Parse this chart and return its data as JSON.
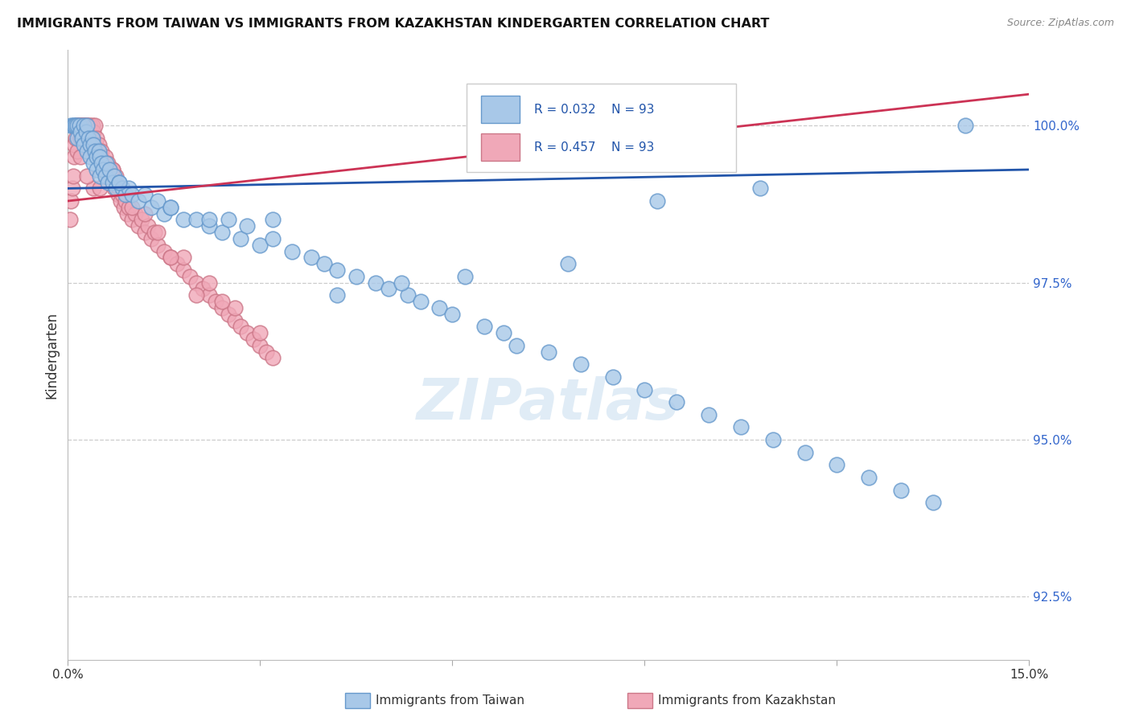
{
  "title": "IMMIGRANTS FROM TAIWAN VS IMMIGRANTS FROM KAZAKHSTAN KINDERGARTEN CORRELATION CHART",
  "source": "Source: ZipAtlas.com",
  "ylabel_left": "Kindergarten",
  "legend1_label": "Immigrants from Taiwan",
  "legend2_label": "Immigrants from Kazakhstan",
  "R_taiwan": 0.032,
  "N_taiwan": 93,
  "R_kazakhstan": 0.457,
  "N_kazakhstan": 93,
  "color_taiwan": "#A8C8E8",
  "color_taiwan_edge": "#6699CC",
  "color_kazakhstan": "#F0A8B8",
  "color_kazakhstan_edge": "#CC7788",
  "color_taiwan_line": "#2255AA",
  "color_kazakhstan_line": "#CC3355",
  "x_min": 0.0,
  "x_max": 15.0,
  "y_min": 91.5,
  "y_max": 101.2,
  "y_ticks": [
    92.5,
    95.0,
    97.5,
    100.0
  ],
  "watermark": "ZIPatlas",
  "taiwan_x": [
    0.05,
    0.08,
    0.1,
    0.12,
    0.15,
    0.15,
    0.18,
    0.2,
    0.22,
    0.25,
    0.25,
    0.28,
    0.3,
    0.3,
    0.32,
    0.35,
    0.35,
    0.38,
    0.4,
    0.4,
    0.42,
    0.45,
    0.45,
    0.48,
    0.5,
    0.5,
    0.52,
    0.55,
    0.58,
    0.6,
    0.62,
    0.65,
    0.7,
    0.72,
    0.75,
    0.8,
    0.85,
    0.9,
    0.95,
    1.0,
    1.1,
    1.2,
    1.3,
    1.4,
    1.5,
    1.6,
    1.8,
    2.0,
    2.2,
    2.4,
    2.5,
    2.7,
    2.8,
    3.0,
    3.2,
    3.5,
    3.8,
    4.0,
    4.2,
    4.5,
    4.8,
    5.0,
    5.3,
    5.5,
    5.8,
    6.0,
    6.5,
    6.8,
    7.0,
    7.5,
    8.0,
    8.5,
    9.0,
    9.5,
    10.0,
    10.5,
    11.0,
    11.5,
    12.0,
    12.5,
    13.0,
    13.5,
    14.0,
    10.8,
    9.2,
    7.8,
    6.2,
    5.2,
    4.2,
    3.2,
    2.2,
    1.6,
    0.8
  ],
  "taiwan_y": [
    100.0,
    100.0,
    100.0,
    100.0,
    100.0,
    99.8,
    100.0,
    99.9,
    99.8,
    100.0,
    99.7,
    99.9,
    100.0,
    99.6,
    99.8,
    99.7,
    99.5,
    99.8,
    99.7,
    99.4,
    99.6,
    99.5,
    99.3,
    99.6,
    99.5,
    99.2,
    99.4,
    99.3,
    99.2,
    99.4,
    99.1,
    99.3,
    99.1,
    99.2,
    99.0,
    99.1,
    99.0,
    98.9,
    99.0,
    98.9,
    98.8,
    98.9,
    98.7,
    98.8,
    98.6,
    98.7,
    98.5,
    98.5,
    98.4,
    98.3,
    98.5,
    98.2,
    98.4,
    98.1,
    98.2,
    98.0,
    97.9,
    97.8,
    97.7,
    97.6,
    97.5,
    97.4,
    97.3,
    97.2,
    97.1,
    97.0,
    96.8,
    96.7,
    96.5,
    96.4,
    96.2,
    96.0,
    95.8,
    95.6,
    95.4,
    95.2,
    95.0,
    94.8,
    94.6,
    94.4,
    94.2,
    94.0,
    100.0,
    99.0,
    98.8,
    97.8,
    97.6,
    97.5,
    97.3,
    98.5,
    98.5,
    98.7,
    99.1
  ],
  "kazakhstan_x": [
    0.03,
    0.05,
    0.07,
    0.08,
    0.1,
    0.1,
    0.12,
    0.13,
    0.15,
    0.15,
    0.17,
    0.18,
    0.2,
    0.2,
    0.22,
    0.23,
    0.25,
    0.25,
    0.27,
    0.28,
    0.3,
    0.3,
    0.32,
    0.35,
    0.35,
    0.38,
    0.4,
    0.4,
    0.42,
    0.45,
    0.45,
    0.48,
    0.5,
    0.52,
    0.55,
    0.58,
    0.6,
    0.62,
    0.65,
    0.7,
    0.72,
    0.75,
    0.78,
    0.8,
    0.82,
    0.85,
    0.88,
    0.9,
    0.92,
    0.95,
    1.0,
    1.05,
    1.1,
    1.15,
    1.2,
    1.25,
    1.3,
    1.35,
    1.4,
    1.5,
    1.6,
    1.7,
    1.8,
    1.9,
    2.0,
    2.1,
    2.2,
    2.3,
    2.4,
    2.5,
    2.6,
    2.7,
    2.8,
    2.9,
    3.0,
    3.1,
    3.2,
    0.6,
    1.0,
    1.4,
    1.8,
    2.2,
    2.6,
    3.0,
    2.0,
    0.4,
    0.3,
    0.2,
    0.5,
    0.7,
    1.2,
    1.6,
    2.4
  ],
  "kazakhstan_y": [
    98.5,
    98.8,
    99.0,
    99.2,
    99.5,
    99.7,
    99.8,
    100.0,
    100.0,
    99.6,
    100.0,
    100.0,
    100.0,
    99.8,
    100.0,
    100.0,
    100.0,
    99.9,
    100.0,
    100.0,
    100.0,
    99.8,
    100.0,
    100.0,
    99.7,
    100.0,
    99.9,
    99.6,
    100.0,
    99.8,
    99.5,
    99.7,
    99.5,
    99.6,
    99.3,
    99.5,
    99.2,
    99.4,
    99.1,
    99.3,
    99.0,
    99.2,
    98.9,
    99.0,
    98.8,
    98.9,
    98.7,
    98.8,
    98.6,
    98.7,
    98.5,
    98.6,
    98.4,
    98.5,
    98.3,
    98.4,
    98.2,
    98.3,
    98.1,
    98.0,
    97.9,
    97.8,
    97.7,
    97.6,
    97.5,
    97.4,
    97.3,
    97.2,
    97.1,
    97.0,
    96.9,
    96.8,
    96.7,
    96.6,
    96.5,
    96.4,
    96.3,
    99.2,
    98.7,
    98.3,
    97.9,
    97.5,
    97.1,
    96.7,
    97.3,
    99.0,
    99.2,
    99.5,
    99.0,
    99.3,
    98.6,
    97.9,
    97.2
  ]
}
